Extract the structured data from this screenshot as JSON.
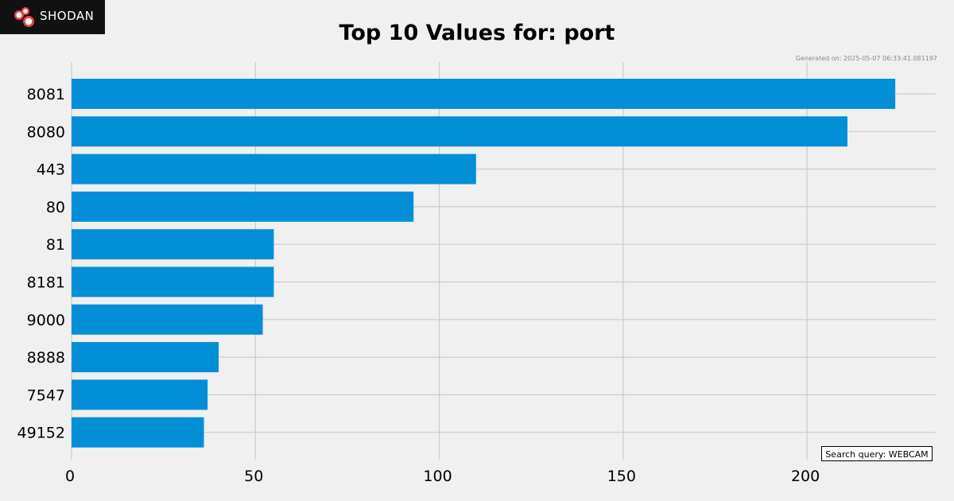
{
  "logo": {
    "text": "SHODAN"
  },
  "chart_data": {
    "type": "bar",
    "orientation": "horizontal",
    "title": "Top 10 Values for: port",
    "generated": "Generated on: 2025-05-07 06:33:41.081197",
    "query": "Search query: WEBCAM",
    "categories": [
      "8081",
      "8080",
      "443",
      "80",
      "81",
      "8181",
      "9000",
      "8888",
      "7547",
      "49152"
    ],
    "values": [
      224,
      211,
      110,
      93,
      55,
      55,
      52,
      40,
      37,
      36
    ],
    "xlim": [
      0,
      235
    ],
    "xticks": [
      0,
      50,
      100,
      150,
      200
    ],
    "grid": true,
    "bar_color": "#038fd7",
    "xlabel": "",
    "ylabel": ""
  }
}
